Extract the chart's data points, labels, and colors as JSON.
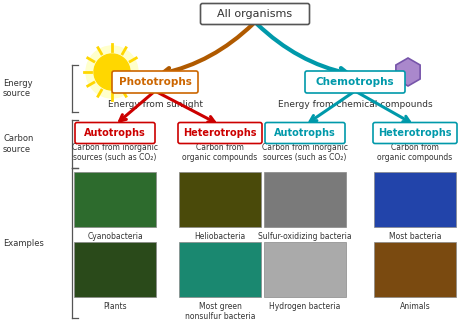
{
  "title": "All organisms",
  "phototrophs_label": "Phototrophs",
  "phototrophs_color": "#cc6600",
  "phototrophs_desc": "Energy from sunlight",
  "chemotrophs_label": "Chemotrophs",
  "chemotrophs_color": "#0099aa",
  "chemotrophs_desc": "Energy from chemical compounds",
  "arrow_orange": "#b05a00",
  "arrow_teal": "#0099aa",
  "arrow_red": "#cc0000",
  "photo_auto_label": "Autotrophs",
  "photo_auto_color": "#cc0000",
  "photo_auto_desc": "Carbon from inorganic\nsources (such as CO₂)",
  "photo_hetero_label": "Heterotrophs",
  "photo_hetero_color": "#cc0000",
  "photo_hetero_desc": "Carbon from\norganic compounds",
  "chemo_auto_label": "Autotrophs",
  "chemo_auto_color": "#0099aa",
  "chemo_auto_desc": "Carbon from inorganic\nsources (such as CO₂)",
  "chemo_hetero_label": "Heterotrophs",
  "chemo_hetero_color": "#0099aa",
  "chemo_hetero_desc": "Carbon from\norganic compounds",
  "left_labels": [
    "Energy\nsource",
    "Carbon\nsource",
    "Examples"
  ],
  "bg_color": "#ffffff",
  "sun_color": "#FFD700",
  "sun_ray_color": "#FFD700",
  "hex_color": "#aa88cc",
  "hex_border": "#7755aa"
}
